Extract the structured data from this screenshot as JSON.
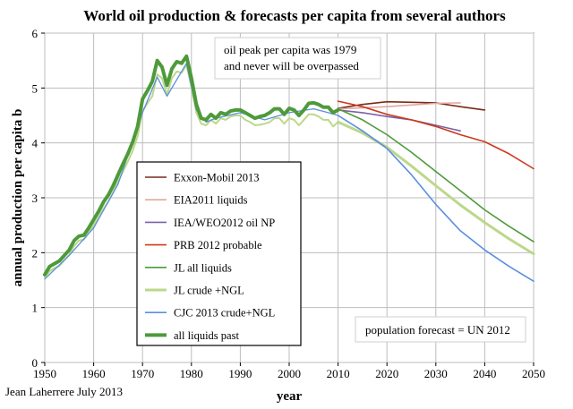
{
  "chart_data": {
    "type": "line",
    "title": "World oil production & forecasts per capita from several authors",
    "xlabel": "year",
    "ylabel": "annual production per capita b",
    "xlim": [
      1950,
      2050
    ],
    "ylim": [
      0,
      6
    ],
    "xticks": [
      1950,
      1960,
      1970,
      1980,
      1990,
      2000,
      2010,
      2020,
      2030,
      2040,
      2050
    ],
    "yticks": [
      0,
      1,
      2,
      3,
      4,
      5,
      6
    ],
    "grid": true,
    "legend_position": "left-center",
    "annotations": {
      "peak_note": [
        "oil peak per capita was 1979",
        "and never will be overpassed"
      ],
      "population_note": "population forecast = UN 2012",
      "credit": "Jean Laherrere July 2013"
    },
    "series": [
      {
        "name": "Exxon-Mobil 2013",
        "color": "#7a2a18",
        "width": 1.6,
        "points": [
          [
            2010,
            4.63
          ],
          [
            2015,
            4.7
          ],
          [
            2020,
            4.75
          ],
          [
            2025,
            4.74
          ],
          [
            2030,
            4.73
          ],
          [
            2035,
            4.66
          ],
          [
            2040,
            4.6
          ]
        ]
      },
      {
        "name": "EIA2011 liquids",
        "color": "#e0a8a0",
        "width": 1.6,
        "points": [
          [
            2010,
            4.62
          ],
          [
            2015,
            4.64
          ],
          [
            2020,
            4.66
          ],
          [
            2025,
            4.69
          ],
          [
            2030,
            4.72
          ],
          [
            2035,
            4.73
          ]
        ]
      },
      {
        "name": "IEA/WEO2012 oil NP",
        "color": "#7b62a8",
        "width": 1.6,
        "points": [
          [
            2010,
            4.6
          ],
          [
            2015,
            4.55
          ],
          [
            2020,
            4.48
          ],
          [
            2025,
            4.42
          ],
          [
            2030,
            4.32
          ],
          [
            2035,
            4.22
          ]
        ]
      },
      {
        "name": "PRB 2012 probable",
        "color": "#cc3a1c",
        "width": 1.6,
        "points": [
          [
            2010,
            4.76
          ],
          [
            2015,
            4.66
          ],
          [
            2020,
            4.52
          ],
          [
            2025,
            4.42
          ],
          [
            2030,
            4.3
          ],
          [
            2035,
            4.15
          ],
          [
            2040,
            4.02
          ],
          [
            2045,
            3.8
          ],
          [
            2050,
            3.53
          ]
        ]
      },
      {
        "name": "JL all liquids",
        "color": "#4e9a3a",
        "width": 1.6,
        "points": [
          [
            2010,
            4.62
          ],
          [
            2015,
            4.42
          ],
          [
            2020,
            4.15
          ],
          [
            2025,
            3.83
          ],
          [
            2030,
            3.48
          ],
          [
            2035,
            3.13
          ],
          [
            2040,
            2.78
          ],
          [
            2045,
            2.48
          ],
          [
            2050,
            2.2
          ]
        ]
      },
      {
        "name": "JL crude +NGL",
        "color": "#bcd88a",
        "width": 3,
        "points": [
          [
            2010,
            4.38
          ],
          [
            2015,
            4.18
          ],
          [
            2020,
            3.92
          ],
          [
            2025,
            3.58
          ],
          [
            2030,
            3.22
          ],
          [
            2035,
            2.87
          ],
          [
            2040,
            2.55
          ],
          [
            2045,
            2.25
          ],
          [
            2050,
            1.98
          ]
        ]
      },
      {
        "name": "CJC 2013 crude+NGL",
        "color": "#5b8fe0",
        "width": 1.6,
        "points": [
          [
            2010,
            4.5
          ],
          [
            2015,
            4.22
          ],
          [
            2020,
            3.9
          ],
          [
            2025,
            3.42
          ],
          [
            2030,
            2.88
          ],
          [
            2035,
            2.4
          ],
          [
            2040,
            2.05
          ],
          [
            2045,
            1.75
          ],
          [
            2050,
            1.48
          ]
        ]
      },
      {
        "name": "all liquids past",
        "color": "#4e9a3a",
        "width": 4,
        "points": [
          [
            1950,
            1.6
          ],
          [
            1951,
            1.75
          ],
          [
            1952,
            1.8
          ],
          [
            1953,
            1.85
          ],
          [
            1954,
            1.95
          ],
          [
            1955,
            2.05
          ],
          [
            1956,
            2.22
          ],
          [
            1957,
            2.3
          ],
          [
            1958,
            2.32
          ],
          [
            1959,
            2.45
          ],
          [
            1960,
            2.6
          ],
          [
            1961,
            2.75
          ],
          [
            1962,
            2.92
          ],
          [
            1963,
            3.05
          ],
          [
            1964,
            3.22
          ],
          [
            1965,
            3.42
          ],
          [
            1966,
            3.62
          ],
          [
            1967,
            3.8
          ],
          [
            1968,
            4.02
          ],
          [
            1969,
            4.3
          ],
          [
            1970,
            4.8
          ],
          [
            1971,
            4.95
          ],
          [
            1972,
            5.12
          ],
          [
            1973,
            5.5
          ],
          [
            1974,
            5.38
          ],
          [
            1975,
            5.05
          ],
          [
            1976,
            5.35
          ],
          [
            1977,
            5.48
          ],
          [
            1978,
            5.45
          ],
          [
            1979,
            5.58
          ],
          [
            1980,
            5.18
          ],
          [
            1981,
            4.7
          ],
          [
            1982,
            4.45
          ],
          [
            1983,
            4.42
          ],
          [
            1984,
            4.52
          ],
          [
            1985,
            4.45
          ],
          [
            1986,
            4.55
          ],
          [
            1987,
            4.52
          ],
          [
            1988,
            4.58
          ],
          [
            1989,
            4.6
          ],
          [
            1990,
            4.6
          ],
          [
            1991,
            4.55
          ],
          [
            1992,
            4.5
          ],
          [
            1993,
            4.45
          ],
          [
            1994,
            4.48
          ],
          [
            1995,
            4.5
          ],
          [
            1996,
            4.55
          ],
          [
            1997,
            4.62
          ],
          [
            1998,
            4.62
          ],
          [
            1999,
            4.52
          ],
          [
            2000,
            4.63
          ],
          [
            2001,
            4.6
          ],
          [
            2002,
            4.5
          ],
          [
            2003,
            4.6
          ],
          [
            2004,
            4.72
          ],
          [
            2005,
            4.73
          ],
          [
            2006,
            4.7
          ],
          [
            2007,
            4.65
          ],
          [
            2008,
            4.65
          ],
          [
            2009,
            4.55
          ],
          [
            2010,
            4.6
          ]
        ]
      },
      {
        "name": "",
        "color": "#bcd88a",
        "width": 2,
        "points": [
          [
            1950,
            1.55
          ],
          [
            1951,
            1.66
          ],
          [
            1952,
            1.72
          ],
          [
            1953,
            1.76
          ],
          [
            1954,
            1.86
          ],
          [
            1955,
            1.96
          ],
          [
            1956,
            2.12
          ],
          [
            1957,
            2.22
          ],
          [
            1958,
            2.24
          ],
          [
            1959,
            2.36
          ],
          [
            1960,
            2.5
          ],
          [
            1961,
            2.64
          ],
          [
            1962,
            2.8
          ],
          [
            1963,
            2.93
          ],
          [
            1964,
            3.1
          ],
          [
            1965,
            3.3
          ],
          [
            1966,
            3.48
          ],
          [
            1967,
            3.66
          ],
          [
            1968,
            3.86
          ],
          [
            1969,
            4.12
          ],
          [
            1970,
            4.58
          ],
          [
            1971,
            4.72
          ],
          [
            1972,
            4.85
          ],
          [
            1973,
            5.25
          ],
          [
            1974,
            5.18
          ],
          [
            1975,
            4.88
          ],
          [
            1976,
            5.18
          ],
          [
            1977,
            5.3
          ],
          [
            1978,
            5.28
          ],
          [
            1979,
            5.42
          ],
          [
            1980,
            5.02
          ],
          [
            1981,
            4.55
          ],
          [
            1982,
            4.35
          ],
          [
            1983,
            4.32
          ],
          [
            1984,
            4.42
          ],
          [
            1985,
            4.35
          ],
          [
            1986,
            4.45
          ],
          [
            1987,
            4.42
          ],
          [
            1988,
            4.48
          ],
          [
            1989,
            4.5
          ],
          [
            1990,
            4.5
          ],
          [
            1991,
            4.42
          ],
          [
            1992,
            4.38
          ],
          [
            1993,
            4.32
          ],
          [
            1994,
            4.33
          ],
          [
            1995,
            4.35
          ],
          [
            1996,
            4.38
          ],
          [
            1997,
            4.45
          ],
          [
            1998,
            4.45
          ],
          [
            1999,
            4.35
          ],
          [
            2000,
            4.45
          ],
          [
            2001,
            4.42
          ],
          [
            2002,
            4.32
          ],
          [
            2003,
            4.42
          ],
          [
            2004,
            4.52
          ],
          [
            2005,
            4.52
          ],
          [
            2006,
            4.48
          ],
          [
            2007,
            4.42
          ],
          [
            2008,
            4.42
          ],
          [
            2009,
            4.3
          ],
          [
            2010,
            4.38
          ]
        ]
      },
      {
        "name": "",
        "color": "#5b8fe0",
        "width": 1.3,
        "points": [
          [
            1950,
            1.52
          ],
          [
            1955,
            1.95
          ],
          [
            1960,
            2.45
          ],
          [
            1965,
            3.25
          ],
          [
            1970,
            4.55
          ],
          [
            1973,
            5.2
          ],
          [
            1975,
            4.85
          ],
          [
            1979,
            5.45
          ],
          [
            1981,
            4.6
          ],
          [
            1983,
            4.38
          ],
          [
            1985,
            4.45
          ],
          [
            1990,
            4.55
          ],
          [
            1995,
            4.42
          ],
          [
            2000,
            4.55
          ],
          [
            2005,
            4.62
          ],
          [
            2008,
            4.55
          ],
          [
            2010,
            4.5
          ]
        ]
      }
    ]
  }
}
